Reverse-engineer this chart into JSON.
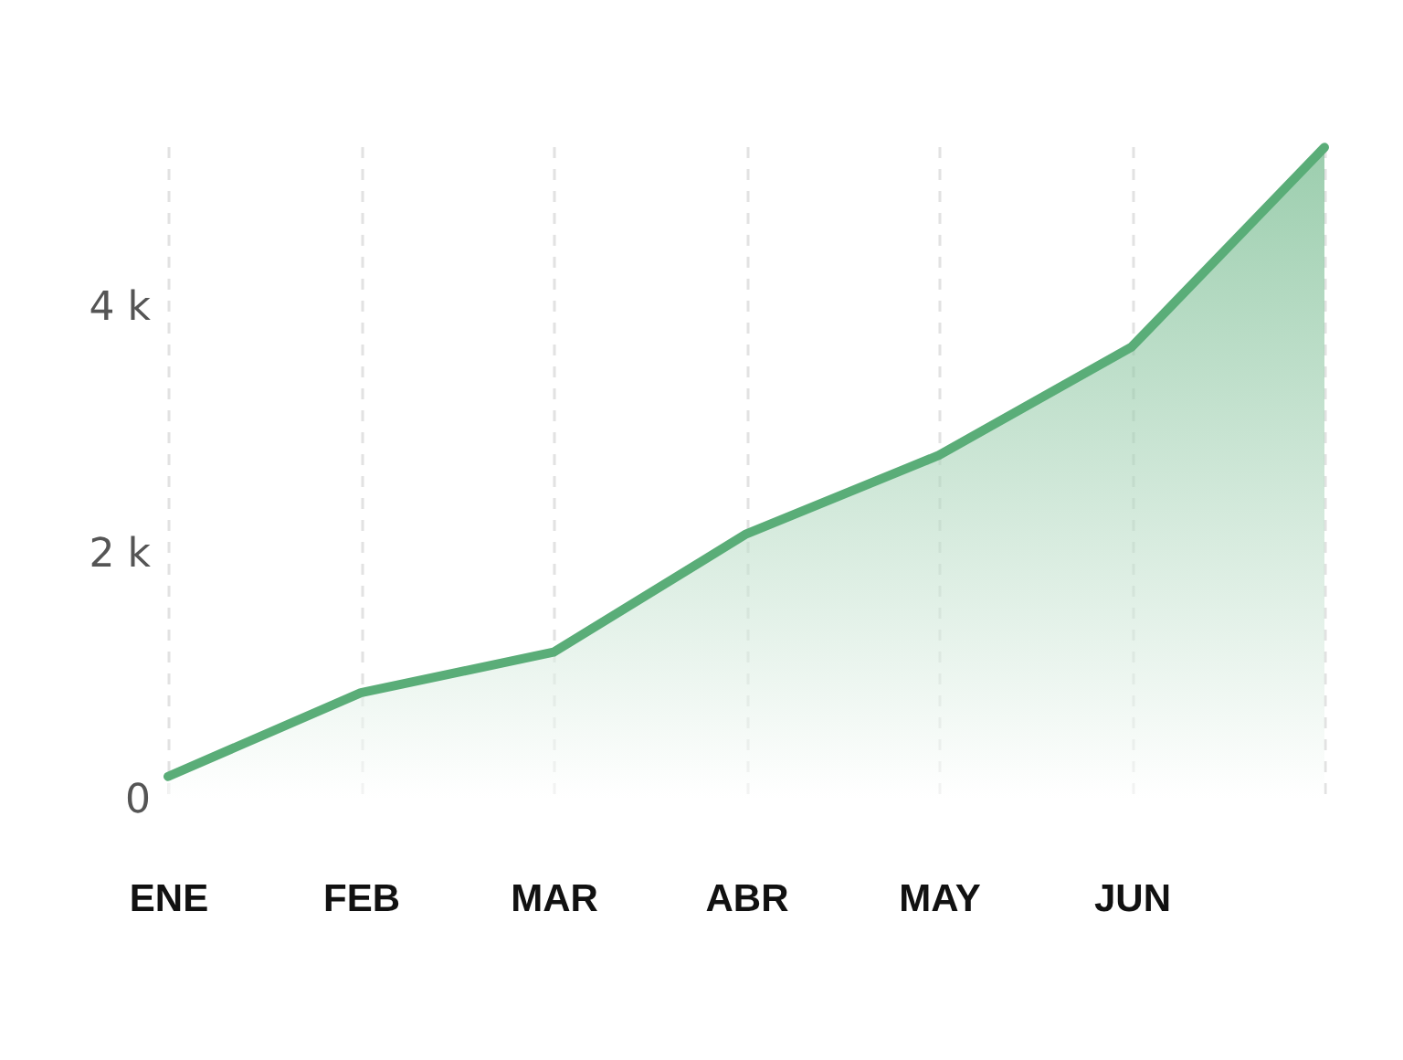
{
  "chart_data": {
    "type": "area",
    "categories": [
      "ENE",
      "FEB",
      "MAR",
      "ABR",
      "MAY",
      "JUN",
      null
    ],
    "series": [
      {
        "color": "#5aad78",
        "values": [
          180,
          860,
          1190,
          2150,
          2790,
          3670,
          5290
        ]
      }
    ],
    "ylim": [
      0,
      5300
    ],
    "yticks": [
      0,
      {
        "value": 2000,
        "label": "2 k"
      },
      {
        "value": 4000,
        "label": "4 k"
      }
    ],
    "grid": "x",
    "line_style": "solid",
    "marker": "none"
  }
}
